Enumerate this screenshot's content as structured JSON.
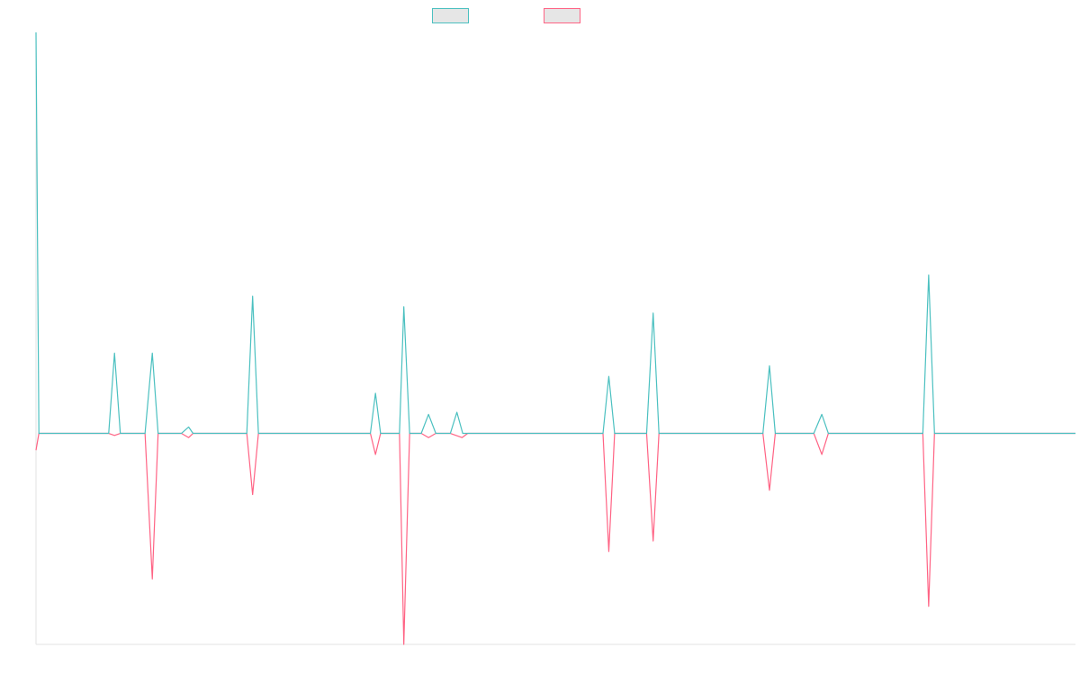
{
  "chart_data": {
    "type": "line",
    "title": "",
    "xlabel": "",
    "ylabel": "",
    "legend": {
      "placement": "top-center",
      "entries": [
        {
          "label": "",
          "color": "#4bc0c0"
        },
        {
          "label": "",
          "color": "#ff6384"
        }
      ]
    },
    "grid": false,
    "ylim": [
      -100,
      190
    ],
    "xlim": [
      0,
      143
    ],
    "series": [
      {
        "color": "#4bc0c0",
        "points": [
          [
            0,
            190
          ],
          [
            0.4,
            0
          ],
          [
            1,
            0
          ],
          [
            10,
            0
          ],
          [
            10.8,
            38
          ],
          [
            11.6,
            0
          ],
          [
            15,
            0
          ],
          [
            16,
            38
          ],
          [
            16.8,
            0
          ],
          [
            20,
            0
          ],
          [
            21,
            3
          ],
          [
            21.6,
            0
          ],
          [
            29,
            0
          ],
          [
            29.8,
            65
          ],
          [
            30.6,
            0
          ],
          [
            46,
            0
          ],
          [
            46.7,
            19
          ],
          [
            47.4,
            0
          ],
          [
            50,
            0
          ],
          [
            50.6,
            60
          ],
          [
            51.4,
            0
          ],
          [
            53,
            0
          ],
          [
            54,
            9
          ],
          [
            55,
            0
          ],
          [
            57,
            0
          ],
          [
            57.9,
            10
          ],
          [
            58.7,
            0
          ],
          [
            78,
            0
          ],
          [
            78.8,
            27
          ],
          [
            79.6,
            0
          ],
          [
            84,
            0
          ],
          [
            84.9,
            57
          ],
          [
            85.7,
            0
          ],
          [
            100,
            0
          ],
          [
            100.9,
            32
          ],
          [
            101.7,
            0
          ],
          [
            107,
            0
          ],
          [
            108.1,
            9
          ],
          [
            109,
            0
          ],
          [
            122,
            0
          ],
          [
            122.8,
            75
          ],
          [
            123.6,
            0
          ],
          [
            143,
            0
          ]
        ]
      },
      {
        "color": "#ff6384",
        "points": [
          [
            0,
            -8
          ],
          [
            0.4,
            0
          ],
          [
            1,
            0
          ],
          [
            10,
            0
          ],
          [
            10.8,
            -1
          ],
          [
            11.6,
            0
          ],
          [
            15,
            0
          ],
          [
            16,
            -69
          ],
          [
            16.8,
            0
          ],
          [
            20,
            0
          ],
          [
            21,
            -2
          ],
          [
            21.6,
            0
          ],
          [
            29,
            0
          ],
          [
            29.8,
            -29
          ],
          [
            30.6,
            0
          ],
          [
            46,
            0
          ],
          [
            46.7,
            -10
          ],
          [
            47.4,
            0
          ],
          [
            50,
            0
          ],
          [
            50.6,
            -100
          ],
          [
            51.4,
            0
          ],
          [
            53,
            0
          ],
          [
            54,
            -2
          ],
          [
            55,
            0
          ],
          [
            57,
            0
          ],
          [
            58.6,
            -2
          ],
          [
            59.4,
            0
          ],
          [
            78,
            0
          ],
          [
            78.8,
            -56
          ],
          [
            79.6,
            0
          ],
          [
            84,
            0
          ],
          [
            84.9,
            -51
          ],
          [
            85.7,
            0
          ],
          [
            100,
            0
          ],
          [
            100.9,
            -27
          ],
          [
            101.7,
            0
          ],
          [
            107,
            0
          ],
          [
            108.1,
            -10
          ],
          [
            109,
            0
          ],
          [
            122,
            0
          ],
          [
            122.8,
            -82
          ],
          [
            123.6,
            0
          ],
          [
            143,
            0
          ]
        ]
      }
    ]
  }
}
